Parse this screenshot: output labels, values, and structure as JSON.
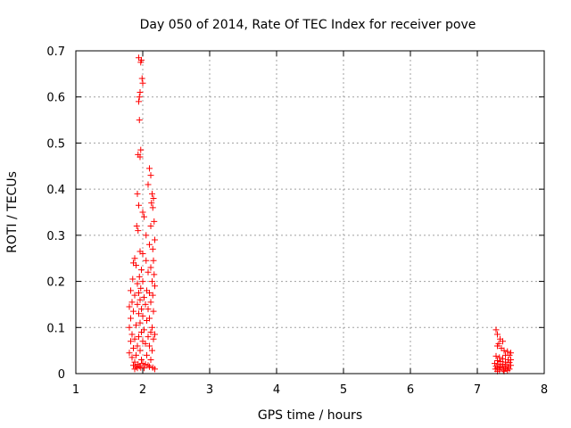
{
  "chart_data": {
    "type": "scatter",
    "title": "Day 050 of 2014, Rate Of TEC Index for receiver pove",
    "xlabel": "GPS time / hours",
    "ylabel": "ROTI / TECUs",
    "xlim": [
      1,
      8
    ],
    "ylim": [
      0,
      0.7
    ],
    "xticks": [
      "1",
      "2",
      "3",
      "4",
      "5",
      "6",
      "7",
      "8"
    ],
    "yticks": [
      "0",
      "0.1",
      "0.2",
      "0.3",
      "0.4",
      "0.5",
      "0.6",
      "0.7"
    ],
    "grid": true,
    "marker": "plus",
    "color": "#ff0000",
    "series": [
      {
        "points": [
          [
            1.94,
            0.685
          ],
          [
            1.98,
            0.68
          ],
          [
            1.97,
            0.675
          ],
          [
            1.99,
            0.64
          ],
          [
            2.0,
            0.63
          ],
          [
            1.96,
            0.61
          ],
          [
            1.95,
            0.6
          ],
          [
            1.94,
            0.59
          ],
          [
            1.95,
            0.55
          ],
          [
            1.97,
            0.485
          ],
          [
            1.93,
            0.475
          ],
          [
            1.96,
            0.47
          ],
          [
            2.1,
            0.445
          ],
          [
            2.12,
            0.43
          ],
          [
            2.08,
            0.41
          ],
          [
            2.14,
            0.39
          ],
          [
            1.92,
            0.39
          ],
          [
            2.16,
            0.38
          ],
          [
            2.13,
            0.37
          ],
          [
            1.94,
            0.365
          ],
          [
            2.15,
            0.36
          ],
          [
            2.0,
            0.35
          ],
          [
            2.02,
            0.34
          ],
          [
            2.17,
            0.33
          ],
          [
            2.12,
            0.32
          ],
          [
            1.91,
            0.32
          ],
          [
            1.93,
            0.31
          ],
          [
            2.05,
            0.3
          ],
          [
            2.18,
            0.29
          ],
          [
            2.1,
            0.28
          ],
          [
            2.0,
            0.26
          ],
          [
            2.15,
            0.27
          ],
          [
            1.96,
            0.265
          ],
          [
            1.88,
            0.25
          ],
          [
            2.05,
            0.245
          ],
          [
            2.16,
            0.245
          ],
          [
            1.86,
            0.24
          ],
          [
            1.9,
            0.235
          ],
          [
            2.12,
            0.23
          ],
          [
            1.98,
            0.225
          ],
          [
            2.08,
            0.22
          ],
          [
            2.17,
            0.215
          ],
          [
            1.95,
            0.21
          ],
          [
            1.85,
            0.205
          ],
          [
            2.0,
            0.2
          ],
          [
            2.14,
            0.2
          ],
          [
            1.92,
            0.195
          ],
          [
            2.18,
            0.19
          ],
          [
            1.97,
            0.185
          ],
          [
            2.06,
            0.18
          ],
          [
            1.82,
            0.18
          ],
          [
            1.94,
            0.175
          ],
          [
            2.1,
            0.175
          ],
          [
            2.15,
            0.17
          ],
          [
            1.88,
            0.17
          ],
          [
            2.02,
            0.165
          ],
          [
            1.96,
            0.16
          ],
          [
            1.84,
            0.155
          ],
          [
            2.12,
            0.155
          ],
          [
            2.04,
            0.15
          ],
          [
            1.92,
            0.15
          ],
          [
            1.8,
            0.145
          ],
          [
            1.98,
            0.14
          ],
          [
            2.08,
            0.14
          ],
          [
            2.16,
            0.135
          ],
          [
            1.86,
            0.135
          ],
          [
            1.94,
            0.13
          ],
          [
            2.0,
            0.125
          ],
          [
            1.82,
            0.12
          ],
          [
            2.1,
            0.12
          ],
          [
            2.06,
            0.115
          ],
          [
            1.96,
            0.11
          ],
          [
            1.9,
            0.105
          ],
          [
            2.14,
            0.1
          ],
          [
            1.8,
            0.1
          ],
          [
            2.02,
            0.095
          ],
          [
            1.98,
            0.09
          ],
          [
            2.12,
            0.09
          ],
          [
            2.18,
            0.085
          ],
          [
            1.84,
            0.085
          ],
          [
            1.94,
            0.08
          ],
          [
            2.08,
            0.08
          ],
          [
            2.16,
            0.075
          ],
          [
            1.88,
            0.075
          ],
          [
            2.0,
            0.07
          ],
          [
            1.82,
            0.07
          ],
          [
            2.04,
            0.065
          ],
          [
            1.92,
            0.06
          ],
          [
            2.1,
            0.06
          ],
          [
            1.86,
            0.055
          ],
          [
            1.96,
            0.05
          ],
          [
            2.14,
            0.05
          ],
          [
            1.8,
            0.045
          ],
          [
            1.9,
            0.04
          ],
          [
            2.06,
            0.04
          ],
          [
            1.84,
            0.035
          ],
          [
            1.98,
            0.03
          ],
          [
            2.12,
            0.03
          ],
          [
            1.88,
            0.025
          ],
          [
            2.0,
            0.022
          ],
          [
            1.93,
            0.02
          ],
          [
            2.04,
            0.02
          ],
          [
            1.86,
            0.018
          ],
          [
            2.08,
            0.018
          ],
          [
            1.95,
            0.016
          ],
          [
            1.9,
            0.015
          ],
          [
            2.1,
            0.015
          ],
          [
            2.15,
            0.013
          ],
          [
            1.97,
            0.013
          ],
          [
            2.02,
            0.012
          ],
          [
            1.92,
            0.012
          ],
          [
            2.18,
            0.01
          ],
          [
            1.88,
            0.01
          ],
          [
            7.28,
            0.095
          ],
          [
            7.3,
            0.085
          ],
          [
            7.34,
            0.075
          ],
          [
            7.38,
            0.07
          ],
          [
            7.32,
            0.065
          ],
          [
            7.3,
            0.06
          ],
          [
            7.36,
            0.055
          ],
          [
            7.4,
            0.05
          ],
          [
            7.45,
            0.048
          ],
          [
            7.5,
            0.045
          ],
          [
            7.48,
            0.04
          ],
          [
            7.42,
            0.04
          ],
          [
            7.28,
            0.038
          ],
          [
            7.33,
            0.035
          ],
          [
            7.38,
            0.032
          ],
          [
            7.46,
            0.03
          ],
          [
            7.5,
            0.03
          ],
          [
            7.3,
            0.028
          ],
          [
            7.35,
            0.026
          ],
          [
            7.42,
            0.025
          ],
          [
            7.48,
            0.024
          ],
          [
            7.26,
            0.022
          ],
          [
            7.32,
            0.02
          ],
          [
            7.38,
            0.02
          ],
          [
            7.44,
            0.019
          ],
          [
            7.5,
            0.018
          ],
          [
            7.28,
            0.016
          ],
          [
            7.34,
            0.015
          ],
          [
            7.4,
            0.015
          ],
          [
            7.46,
            0.014
          ],
          [
            7.3,
            0.012
          ],
          [
            7.36,
            0.012
          ],
          [
            7.42,
            0.011
          ],
          [
            7.48,
            0.01
          ],
          [
            7.27,
            0.01
          ],
          [
            7.33,
            0.008
          ],
          [
            7.39,
            0.008
          ],
          [
            7.45,
            0.007
          ],
          [
            7.3,
            0.005
          ],
          [
            7.4,
            0.005
          ]
        ]
      }
    ]
  }
}
